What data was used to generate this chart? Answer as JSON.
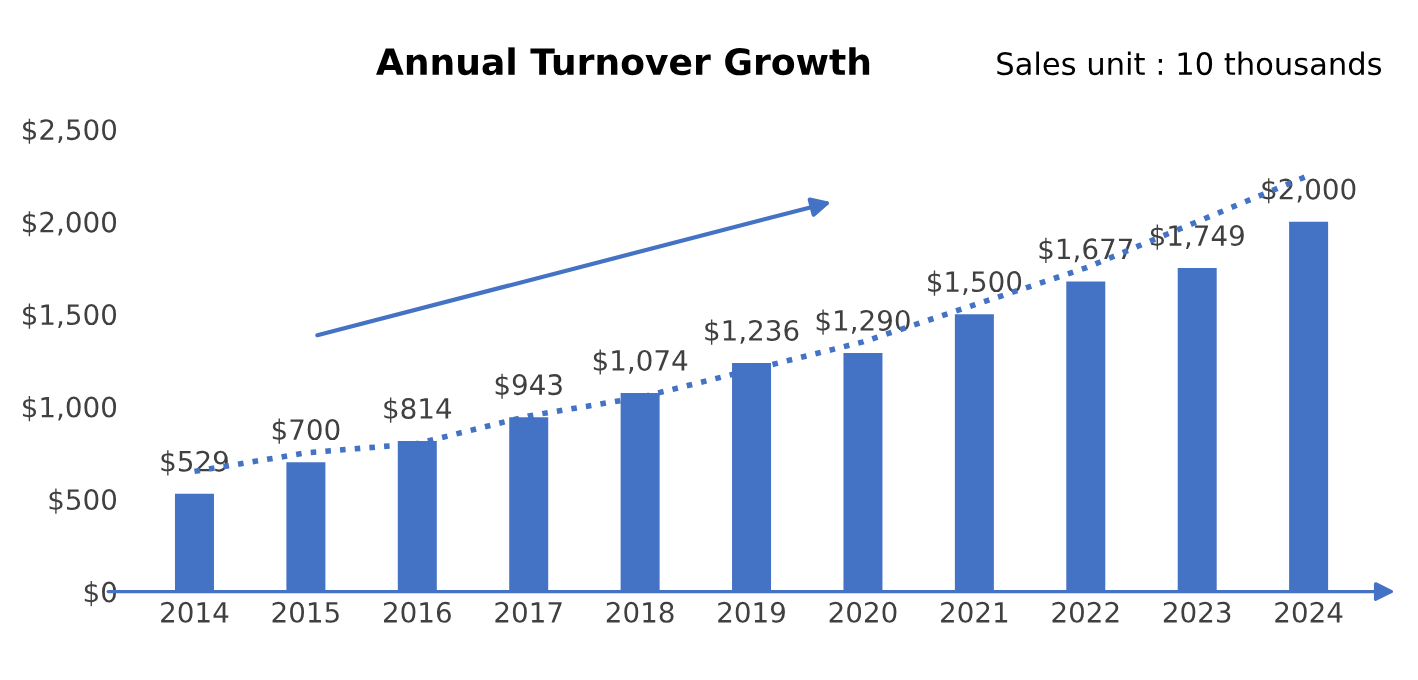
{
  "chart_data": {
    "type": "bar",
    "title": "Annual Turnover Growth",
    "subtitle": "Sales unit : 10 thousands",
    "categories": [
      "2014",
      "2015",
      "2016",
      "2017",
      "2018",
      "2019",
      "2020",
      "2021",
      "2022",
      "2023",
      "2024"
    ],
    "series": [
      {
        "color": "#4472c4",
        "values": [
          529,
          700,
          814,
          943,
          1074,
          1236,
          1290,
          1500,
          1677,
          1749,
          2000
        ],
        "value_labels": [
          "$529",
          "$700",
          "$814",
          "$943",
          "$1,074",
          "$1,236",
          "$1,290",
          "$1,500",
          "$1,677",
          "$1,749",
          "$2,000"
        ]
      },
      {
        "type": "line",
        "color": "#4472c4",
        "line_style": "dotted",
        "marker": "none",
        "values": [
          650,
          750,
          800,
          950,
          1050,
          1200,
          1350,
          1550,
          1750,
          2000,
          2250
        ]
      }
    ],
    "ylim": [
      0,
      2500
    ],
    "yticks": [
      {
        "value": 0,
        "label": "$0"
      },
      {
        "value": 500,
        "label": "$500"
      },
      {
        "value": 1000,
        "label": "$1,000"
      },
      {
        "value": 1500,
        "label": "$1,500"
      },
      {
        "value": 2000,
        "label": "$2,000"
      },
      {
        "value": 2500,
        "label": "$2,500"
      }
    ],
    "grid": false,
    "legend": false
  }
}
